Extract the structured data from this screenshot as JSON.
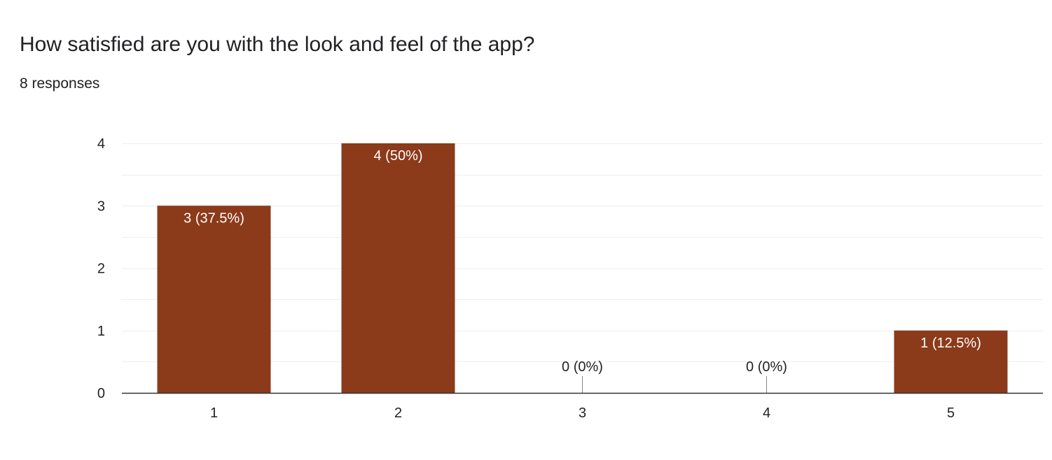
{
  "question": {
    "title": "How satisfied are you with the look and feel of the app?",
    "responses": "8 responses"
  },
  "chart_data": {
    "type": "bar",
    "categories": [
      "1",
      "2",
      "3",
      "4",
      "5"
    ],
    "values": [
      3,
      4,
      0,
      0,
      1
    ],
    "data_labels": [
      "3 (37.5%)",
      "4 (50%)",
      "0 (0%)",
      "0 (0%)",
      "1 (12.5%)"
    ],
    "ylim": [
      0,
      4
    ],
    "yticks": [
      "0",
      "1",
      "2",
      "3",
      "4"
    ],
    "title": "",
    "xlabel": "",
    "ylabel": "",
    "grid": true,
    "legend": "none",
    "bar_color": "#8b3a1a",
    "label_inside_color": "#ffffff",
    "label_outside_color": "#222222",
    "grid_color": "#eeeeee",
    "axis_color": "#333333"
  }
}
